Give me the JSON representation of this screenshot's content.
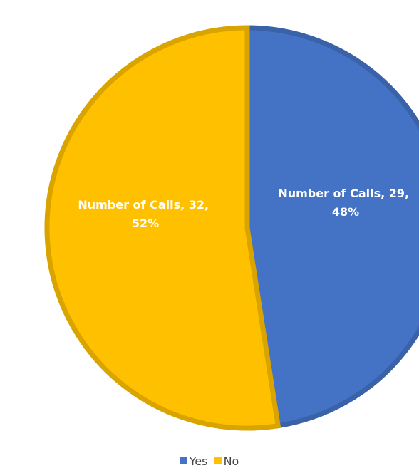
{
  "chart_data": {
    "type": "pie",
    "categories": [
      "Yes",
      "No"
    ],
    "values": [
      29,
      32
    ],
    "percent_labels": [
      "48%",
      "52%"
    ],
    "series_label": "Number of Calls",
    "colors": [
      "#4472C4",
      "#FFC000"
    ],
    "border_colors": [
      "#3A62A8",
      "#D9A400"
    ],
    "legend_position": "bottom",
    "start_angle_deg": 0,
    "direction": "clockwise",
    "data_labels": {
      "yes": {
        "line1": "Number of Calls, 29,",
        "line2": "48%"
      },
      "no": {
        "line1": "Number of Calls, 32,",
        "line2": "52%"
      }
    },
    "legend": {
      "yes": "Yes",
      "no": "No"
    }
  }
}
